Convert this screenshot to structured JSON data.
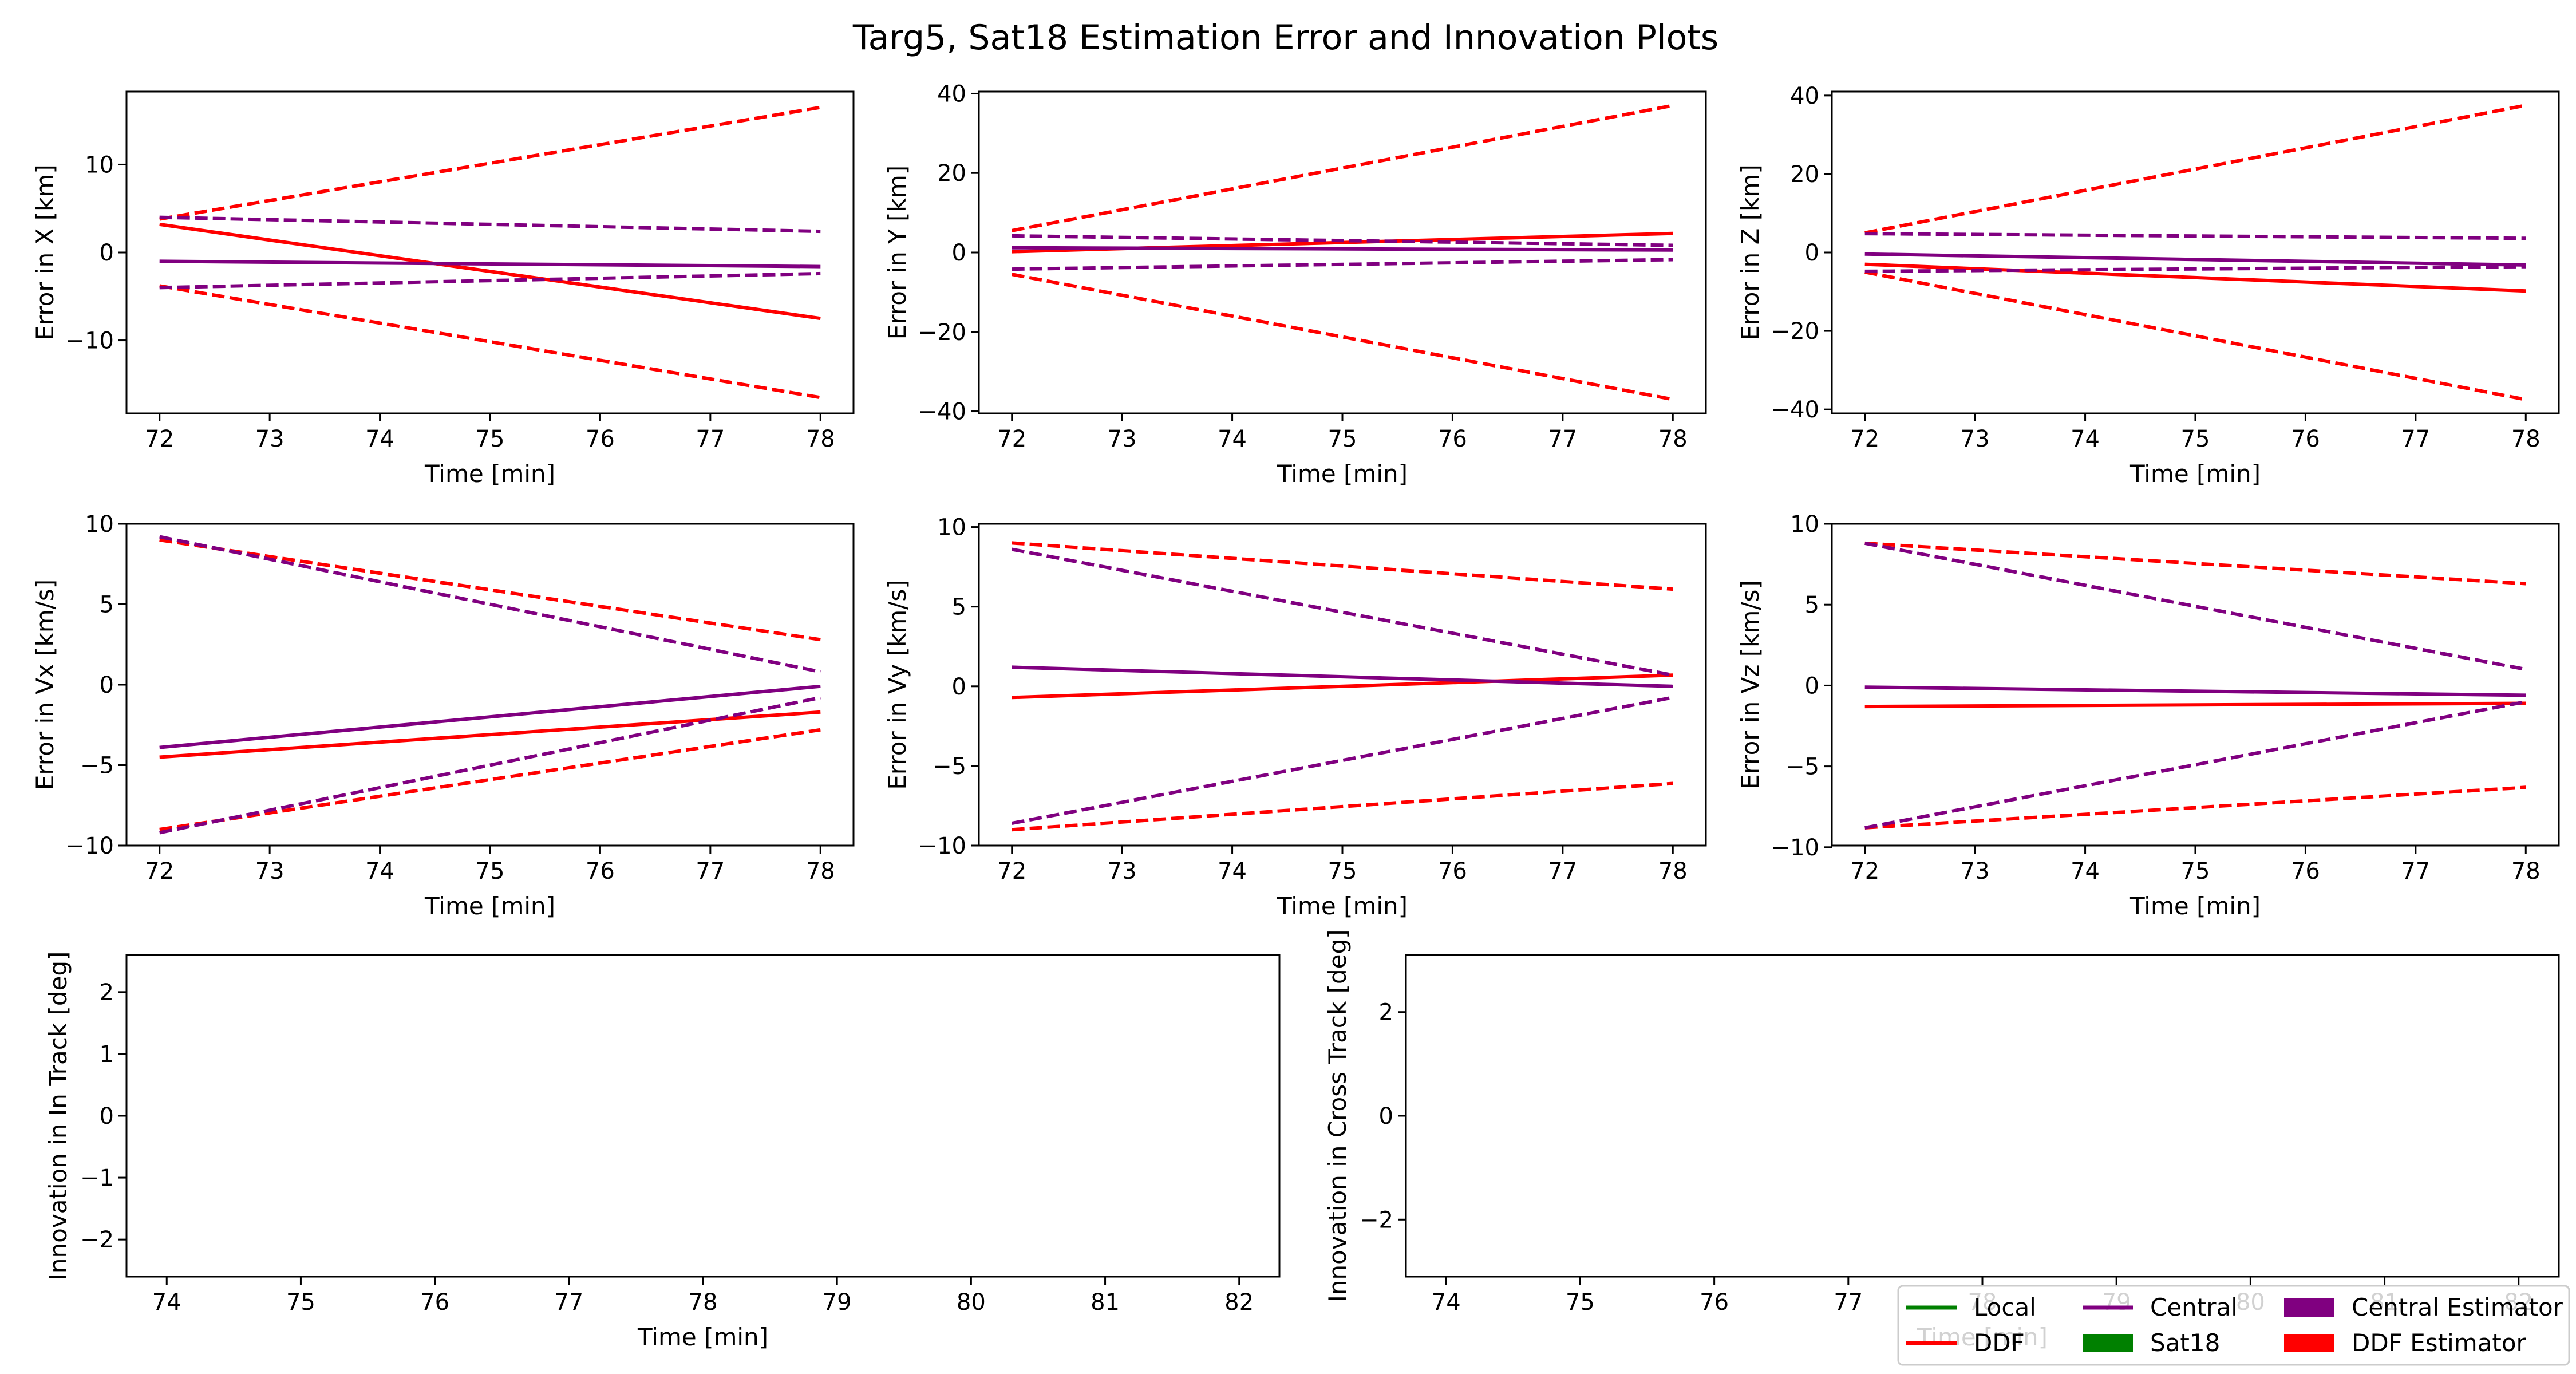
{
  "figure": {
    "title": "Targ5, Sat18 Estimation Error and Innovation Plots"
  },
  "legend": {
    "entries": [
      {
        "label": "Local",
        "kind": "line",
        "color": "#008000"
      },
      {
        "label": "DDF",
        "kind": "line",
        "color": "#ff0000"
      },
      {
        "label": "Central",
        "kind": "line",
        "color": "#800080"
      },
      {
        "label": "Sat18",
        "kind": "patch",
        "color": "#008000"
      },
      {
        "label": "Central Estimator",
        "kind": "patch",
        "color": "#800080"
      },
      {
        "label": "DDF Estimator",
        "kind": "patch",
        "color": "#ff0000"
      }
    ]
  },
  "colors": {
    "ddf": "#ff0000",
    "central": "#800080",
    "local": "#008000"
  },
  "chart_data": [
    {
      "type": "line",
      "xlabel": "Time [min]",
      "ylabel": "Error in X [km]",
      "xlim": [
        71.7,
        78.3
      ],
      "ylim": [
        -18.3,
        18.3
      ],
      "xticks": [
        72,
        73,
        74,
        75,
        76,
        77,
        78
      ],
      "yticks": [
        -10,
        0,
        10
      ],
      "series": [
        {
          "role": "DDF error",
          "color": "#ff0000",
          "dashed": false,
          "x": [
            72,
            78
          ],
          "y": [
            3.2,
            -7.5
          ]
        },
        {
          "role": "DDF +cov",
          "color": "#ff0000",
          "dashed": true,
          "x": [
            72,
            78
          ],
          "y": [
            3.8,
            16.5
          ]
        },
        {
          "role": "DDF -cov",
          "color": "#ff0000",
          "dashed": true,
          "x": [
            72,
            78
          ],
          "y": [
            -3.8,
            -16.5
          ]
        },
        {
          "role": "Central error",
          "color": "#800080",
          "dashed": false,
          "x": [
            72,
            78
          ],
          "y": [
            -1.0,
            -1.6
          ]
        },
        {
          "role": "Central +cov",
          "color": "#800080",
          "dashed": true,
          "x": [
            72,
            78
          ],
          "y": [
            4.0,
            2.4
          ]
        },
        {
          "role": "Central -cov",
          "color": "#800080",
          "dashed": true,
          "x": [
            72,
            78
          ],
          "y": [
            -4.0,
            -2.4
          ]
        }
      ]
    },
    {
      "type": "line",
      "xlabel": "Time [min]",
      "ylabel": "Error in Y [km]",
      "xlim": [
        71.7,
        78.3
      ],
      "ylim": [
        -40.5,
        40.5
      ],
      "xticks": [
        72,
        73,
        74,
        75,
        76,
        77,
        78
      ],
      "yticks": [
        -40,
        -20,
        0,
        20,
        40
      ],
      "series": [
        {
          "role": "DDF error",
          "color": "#ff0000",
          "dashed": false,
          "x": [
            72,
            78
          ],
          "y": [
            0.2,
            4.8
          ]
        },
        {
          "role": "DDF +cov",
          "color": "#ff0000",
          "dashed": true,
          "x": [
            72,
            78
          ],
          "y": [
            5.5,
            37.0
          ]
        },
        {
          "role": "DDF -cov",
          "color": "#ff0000",
          "dashed": true,
          "x": [
            72,
            78
          ],
          "y": [
            -5.5,
            -37.0
          ]
        },
        {
          "role": "Central error",
          "color": "#800080",
          "dashed": false,
          "x": [
            72,
            78
          ],
          "y": [
            1.2,
            0.6
          ]
        },
        {
          "role": "Central +cov",
          "color": "#800080",
          "dashed": true,
          "x": [
            72,
            78
          ],
          "y": [
            4.2,
            1.8
          ]
        },
        {
          "role": "Central -cov",
          "color": "#800080",
          "dashed": true,
          "x": [
            72,
            78
          ],
          "y": [
            -4.2,
            -1.8
          ]
        }
      ]
    },
    {
      "type": "line",
      "xlabel": "Time [min]",
      "ylabel": "Error in Z [km]",
      "xlim": [
        71.7,
        78.3
      ],
      "ylim": [
        -41.0,
        41.0
      ],
      "xticks": [
        72,
        73,
        74,
        75,
        76,
        77,
        78
      ],
      "yticks": [
        -40,
        -20,
        0,
        20,
        40
      ],
      "series": [
        {
          "role": "DDF error",
          "color": "#ff0000",
          "dashed": false,
          "x": [
            72,
            78
          ],
          "y": [
            -3.0,
            -9.8
          ]
        },
        {
          "role": "DDF +cov",
          "color": "#ff0000",
          "dashed": true,
          "x": [
            72,
            78
          ],
          "y": [
            5.0,
            37.5
          ]
        },
        {
          "role": "DDF -cov",
          "color": "#ff0000",
          "dashed": true,
          "x": [
            72,
            78
          ],
          "y": [
            -5.0,
            -37.5
          ]
        },
        {
          "role": "Central error",
          "color": "#800080",
          "dashed": false,
          "x": [
            72,
            78
          ],
          "y": [
            -0.4,
            -3.2
          ]
        },
        {
          "role": "Central +cov",
          "color": "#800080",
          "dashed": true,
          "x": [
            72,
            78
          ],
          "y": [
            4.8,
            3.6
          ]
        },
        {
          "role": "Central -cov",
          "color": "#800080",
          "dashed": true,
          "x": [
            72,
            78
          ],
          "y": [
            -4.8,
            -3.6
          ]
        }
      ]
    },
    {
      "type": "line",
      "xlabel": "Time [min]",
      "ylabel": "Error in Vx [km/s]",
      "xlim": [
        71.7,
        78.3
      ],
      "ylim": [
        -10.0,
        10.0
      ],
      "xticks": [
        72,
        73,
        74,
        75,
        76,
        77,
        78
      ],
      "yticks": [
        -10,
        -5,
        0,
        5,
        10
      ],
      "series": [
        {
          "role": "DDF error",
          "color": "#ff0000",
          "dashed": false,
          "x": [
            72,
            78
          ],
          "y": [
            -4.5,
            -1.7
          ]
        },
        {
          "role": "DDF +cov",
          "color": "#ff0000",
          "dashed": true,
          "x": [
            72,
            78
          ],
          "y": [
            9.0,
            2.8
          ]
        },
        {
          "role": "DDF -cov",
          "color": "#ff0000",
          "dashed": true,
          "x": [
            72,
            78
          ],
          "y": [
            -9.0,
            -2.8
          ]
        },
        {
          "role": "Central error",
          "color": "#800080",
          "dashed": false,
          "x": [
            72,
            78
          ],
          "y": [
            -3.9,
            -0.1
          ]
        },
        {
          "role": "Central +cov",
          "color": "#800080",
          "dashed": true,
          "x": [
            72,
            78
          ],
          "y": [
            9.2,
            0.8
          ]
        },
        {
          "role": "Central -cov",
          "color": "#800080",
          "dashed": true,
          "x": [
            72,
            78
          ],
          "y": [
            -9.2,
            -0.8
          ]
        }
      ]
    },
    {
      "type": "line",
      "xlabel": "Time [min]",
      "ylabel": "Error in Vy [km/s]",
      "xlim": [
        71.7,
        78.3
      ],
      "ylim": [
        -10.0,
        10.2
      ],
      "xticks": [
        72,
        73,
        74,
        75,
        76,
        77,
        78
      ],
      "yticks": [
        -10,
        -5,
        0,
        5,
        10
      ],
      "series": [
        {
          "role": "DDF error",
          "color": "#ff0000",
          "dashed": false,
          "x": [
            72,
            78
          ],
          "y": [
            -0.7,
            0.7
          ]
        },
        {
          "role": "DDF +cov",
          "color": "#ff0000",
          "dashed": true,
          "x": [
            72,
            78
          ],
          "y": [
            9.0,
            6.1
          ]
        },
        {
          "role": "DDF -cov",
          "color": "#ff0000",
          "dashed": true,
          "x": [
            72,
            78
          ],
          "y": [
            -9.0,
            -6.1
          ]
        },
        {
          "role": "Central error",
          "color": "#800080",
          "dashed": false,
          "x": [
            72,
            78
          ],
          "y": [
            1.2,
            0.0
          ]
        },
        {
          "role": "Central +cov",
          "color": "#800080",
          "dashed": true,
          "x": [
            72,
            78
          ],
          "y": [
            8.6,
            0.7
          ]
        },
        {
          "role": "Central -cov",
          "color": "#800080",
          "dashed": true,
          "x": [
            72,
            78
          ],
          "y": [
            -8.6,
            -0.7
          ]
        }
      ]
    },
    {
      "type": "line",
      "xlabel": "Time [min]",
      "ylabel": "Error in Vz [km/s]",
      "xlim": [
        71.7,
        78.3
      ],
      "ylim": [
        -9.9,
        10.0
      ],
      "xticks": [
        72,
        73,
        74,
        75,
        76,
        77,
        78
      ],
      "yticks": [
        -10,
        -5,
        0,
        5,
        10
      ],
      "series": [
        {
          "role": "DDF error",
          "color": "#ff0000",
          "dashed": false,
          "x": [
            72,
            78
          ],
          "y": [
            -1.3,
            -1.1
          ]
        },
        {
          "role": "DDF +cov",
          "color": "#ff0000",
          "dashed": true,
          "x": [
            72,
            78
          ],
          "y": [
            8.8,
            6.3
          ]
        },
        {
          "role": "DDF -cov",
          "color": "#ff0000",
          "dashed": true,
          "x": [
            72,
            78
          ],
          "y": [
            -8.8,
            -6.3
          ]
        },
        {
          "role": "Central error",
          "color": "#800080",
          "dashed": false,
          "x": [
            72,
            78
          ],
          "y": [
            -0.1,
            -0.6
          ]
        },
        {
          "role": "Central +cov",
          "color": "#800080",
          "dashed": true,
          "x": [
            72,
            78
          ],
          "y": [
            8.8,
            1.0
          ]
        },
        {
          "role": "Central -cov",
          "color": "#800080",
          "dashed": true,
          "x": [
            72,
            78
          ],
          "y": [
            -8.8,
            -1.0
          ]
        }
      ]
    },
    {
      "type": "line",
      "xlabel": "Time [min]",
      "ylabel": "Innovation in In Track [deg]",
      "xlim": [
        73.7,
        82.3
      ],
      "ylim": [
        -2.6,
        2.6
      ],
      "xticks": [
        74,
        75,
        76,
        77,
        78,
        79,
        80,
        81,
        82
      ],
      "yticks": [
        -2,
        -1,
        0,
        1,
        2
      ],
      "series": []
    },
    {
      "type": "line",
      "xlabel": "Time [min]",
      "ylabel": "Innovation in Cross Track [deg]",
      "xlim": [
        73.7,
        82.3
      ],
      "ylim": [
        -3.1,
        3.1
      ],
      "xticks": [
        74,
        75,
        76,
        77,
        78,
        79,
        80,
        81,
        82
      ],
      "yticks": [
        -2,
        0,
        2
      ],
      "series": []
    }
  ]
}
